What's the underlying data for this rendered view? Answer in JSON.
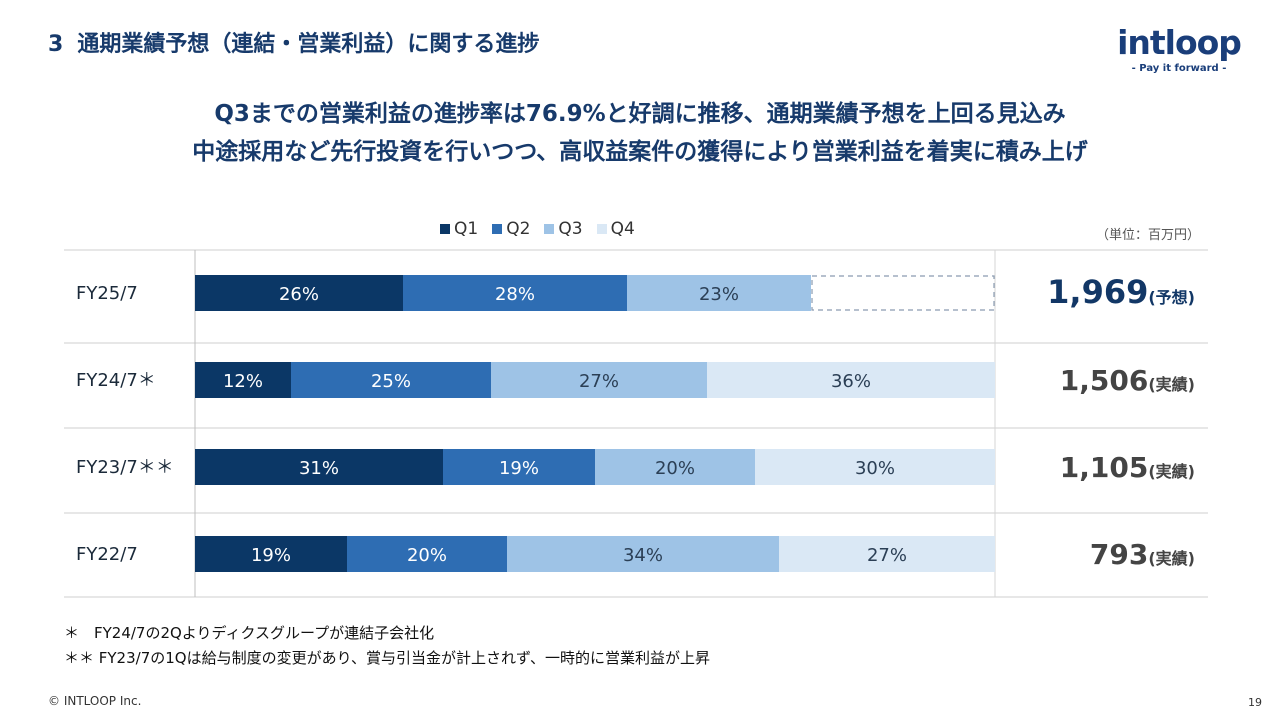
{
  "slide": {
    "section_number": "3",
    "title": "通期業績予想（連結・営業利益）に関する進捗",
    "headline_1": "Q3までの営業利益の進捗率は76.9%と好調に推移、通期業績予想を上回る見込み",
    "headline_2": "中途採用など先行投資を行いつつ、高収益案件の獲得により営業利益を着実に積み上げ",
    "unit": "（単位：百万円）",
    "notes": [
      "＊　FY24/7の2Qよりディクスグループが連結子会社化",
      "＊＊ FY23/7の1Qは給与制度の変更があり、賞与引当金が計上されず、一時的に営業利益が上昇"
    ],
    "copyright": "© INTLOOP Inc.",
    "page_number": "19"
  },
  "logo": {
    "wordmark": "intloop",
    "tagline": "- Pay it forward -"
  },
  "chart_data": {
    "type": "bar",
    "orientation": "horizontal",
    "stacked": true,
    "categories": [
      "FY25/7",
      "FY24/7＊",
      "FY23/7＊＊",
      "FY22/7"
    ],
    "series": [
      {
        "name": "Q1",
        "color": "#0b3766",
        "values": [
          26,
          12,
          31,
          19
        ]
      },
      {
        "name": "Q2",
        "color": "#2e6db3",
        "values": [
          28,
          25,
          19,
          20
        ]
      },
      {
        "name": "Q3",
        "color": "#9ec3e6",
        "values": [
          23,
          27,
          20,
          34
        ]
      },
      {
        "name": "Q4",
        "color": "#dae8f5",
        "values": [
          null,
          36,
          30,
          27
        ]
      }
    ],
    "data_labels_suffix": "%",
    "xlim": [
      0,
      100
    ],
    "totals": [
      {
        "value": "1,969",
        "note": "(予想)",
        "emphasis": true
      },
      {
        "value": "1,506",
        "note": "(実績)",
        "emphasis": false
      },
      {
        "value": "1,105",
        "note": "(実績)",
        "emphasis": false
      },
      {
        "value": "793",
        "note": "(実績)",
        "emphasis": false
      }
    ],
    "forecast_remaining_outline": true
  }
}
